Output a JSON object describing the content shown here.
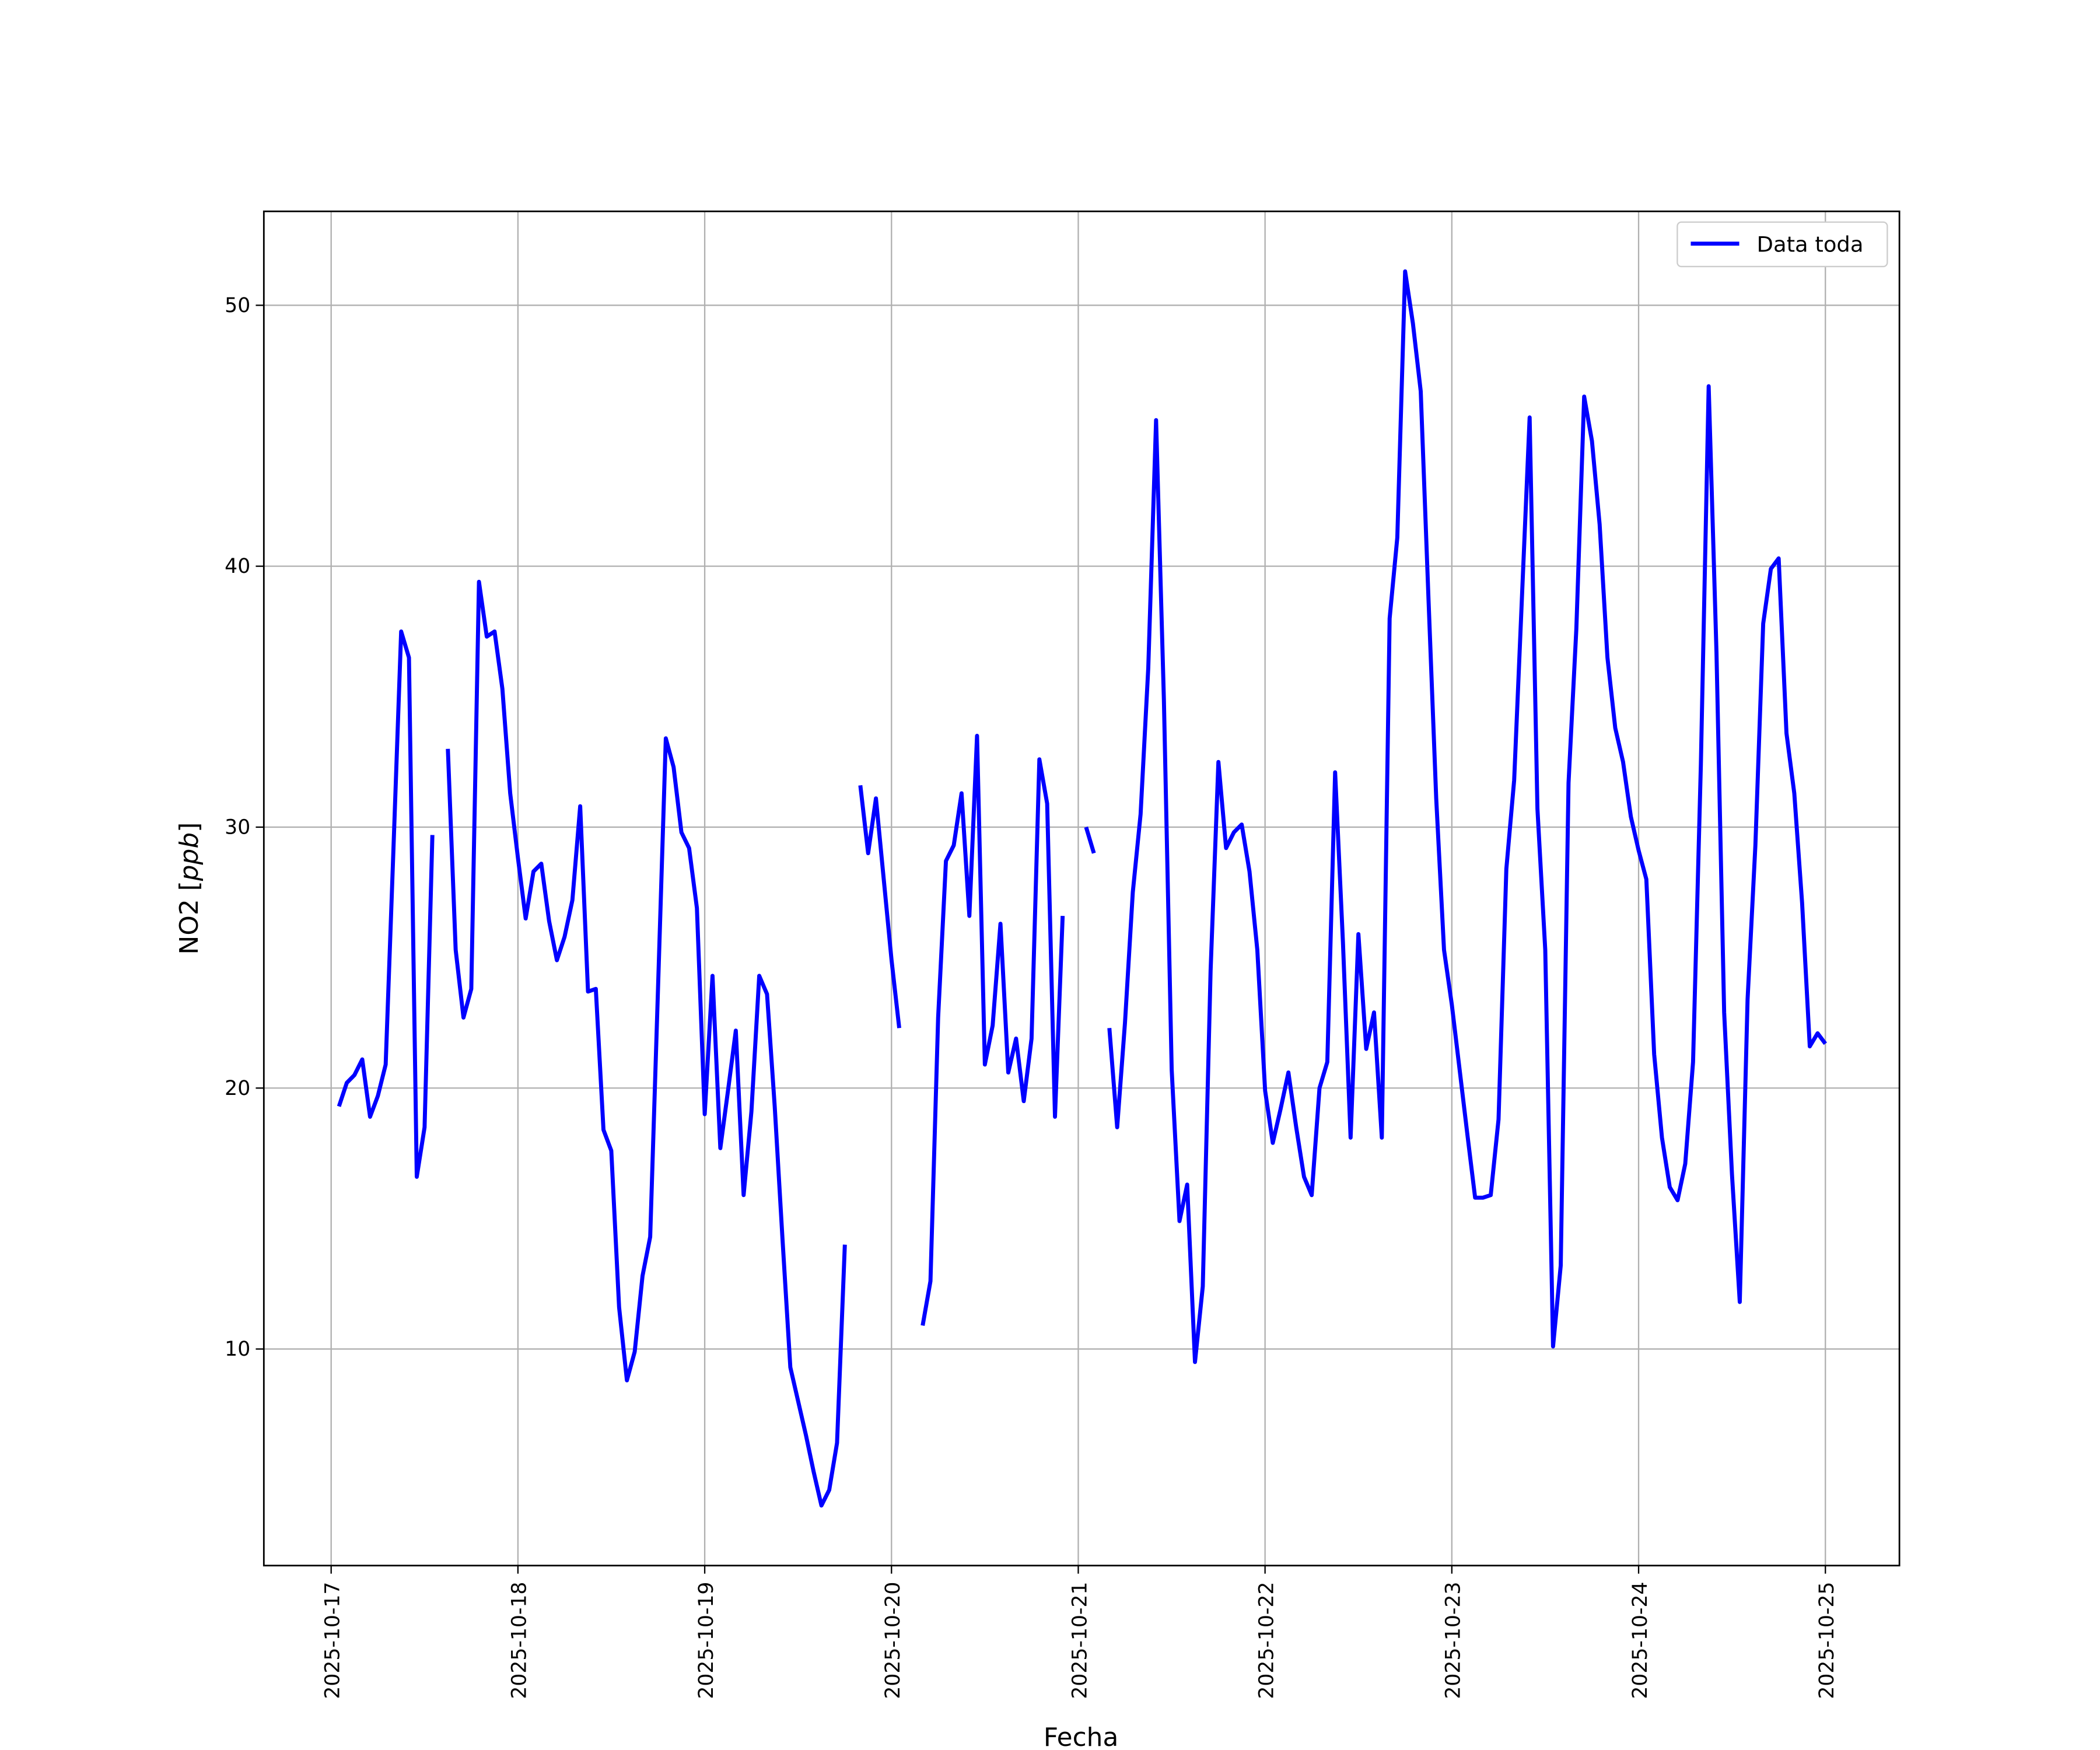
{
  "chart_data": {
    "type": "line",
    "title": "",
    "xlabel": "Fecha",
    "ylabel": "NO2 [ppb]",
    "ylabel_parts": {
      "name": "NO2 [",
      "unit": "ppb",
      "close": "]"
    },
    "x_start": "2025-10-17 01:00",
    "x_step_hours": 1,
    "xlim": [
      "2025-10-16 16:30",
      "2025-10-25 09:30"
    ],
    "ylim": [
      1.7,
      53.6
    ],
    "xticks": [
      "2025-10-17",
      "2025-10-18",
      "2025-10-19",
      "2025-10-20",
      "2025-10-21",
      "2025-10-22",
      "2025-10-23",
      "2025-10-24",
      "2025-10-25"
    ],
    "yticks": [
      10,
      20,
      30,
      40,
      50
    ],
    "grid": true,
    "legend": {
      "placement": "top-right",
      "entries": [
        "Data toda"
      ]
    },
    "series": [
      {
        "name": "Data toda",
        "color": "#0000ff",
        "values": [
          19.3,
          20.2,
          20.5,
          21.1,
          18.9,
          19.7,
          20.9,
          29.2,
          37.5,
          36.5,
          16.6,
          18.5,
          29.7,
          null,
          33.0,
          25.3,
          22.7,
          23.8,
          39.4,
          37.3,
          37.5,
          35.3,
          31.3,
          28.8,
          26.5,
          28.3,
          28.6,
          26.4,
          24.9,
          25.8,
          27.2,
          30.8,
          23.7,
          23.8,
          18.4,
          17.6,
          11.6,
          8.8,
          9.9,
          12.8,
          14.3,
          23.8,
          33.4,
          32.3,
          29.8,
          29.2,
          26.9,
          19.0,
          24.3,
          17.7,
          19.9,
          22.2,
          15.9,
          19.1,
          24.3,
          23.6,
          19.3,
          14.2,
          9.3,
          8.0,
          6.7,
          5.3,
          4.0,
          4.6,
          6.4,
          14.0,
          null,
          31.6,
          29.0,
          31.1,
          28.0,
          24.9,
          22.3,
          null,
          null,
          10.9,
          12.6,
          22.7,
          28.7,
          29.3,
          31.3,
          26.6,
          33.5,
          20.9,
          22.4,
          26.3,
          20.6,
          21.9,
          19.5,
          21.9,
          32.6,
          30.9,
          18.9,
          26.6,
          null,
          null,
          30.0,
          29.0,
          null,
          22.3,
          18.5,
          22.5,
          27.5,
          30.5,
          36.1,
          45.6,
          34.9,
          20.7,
          14.9,
          16.3,
          9.5,
          12.4,
          24.5,
          32.5,
          29.2,
          29.8,
          30.1,
          28.3,
          25.3,
          19.9,
          17.9,
          19.2,
          20.6,
          18.5,
          16.6,
          15.9,
          20.0,
          21.0,
          32.1,
          25.6,
          18.1,
          25.9,
          21.5,
          22.9,
          18.1,
          38.0,
          41.1,
          51.3,
          49.3,
          46.7,
          38.7,
          31.1,
          25.3,
          23.2,
          20.7,
          18.2,
          15.8,
          15.8,
          15.9,
          18.8,
          28.4,
          31.8,
          38.7,
          45.7,
          30.7,
          25.3,
          10.1,
          13.2,
          31.7,
          37.6,
          46.5,
          44.8,
          41.6,
          36.5,
          33.8,
          32.5,
          30.4,
          29.1,
          28.0,
          21.3,
          18.1,
          16.2,
          15.7,
          17.1,
          21.0,
          32.4,
          46.9,
          36.7,
          22.9,
          16.7,
          11.8,
          23.4,
          29.3,
          37.8,
          39.9,
          40.3,
          33.6,
          31.3,
          27.1,
          21.6,
          22.1,
          21.7
        ]
      }
    ]
  }
}
